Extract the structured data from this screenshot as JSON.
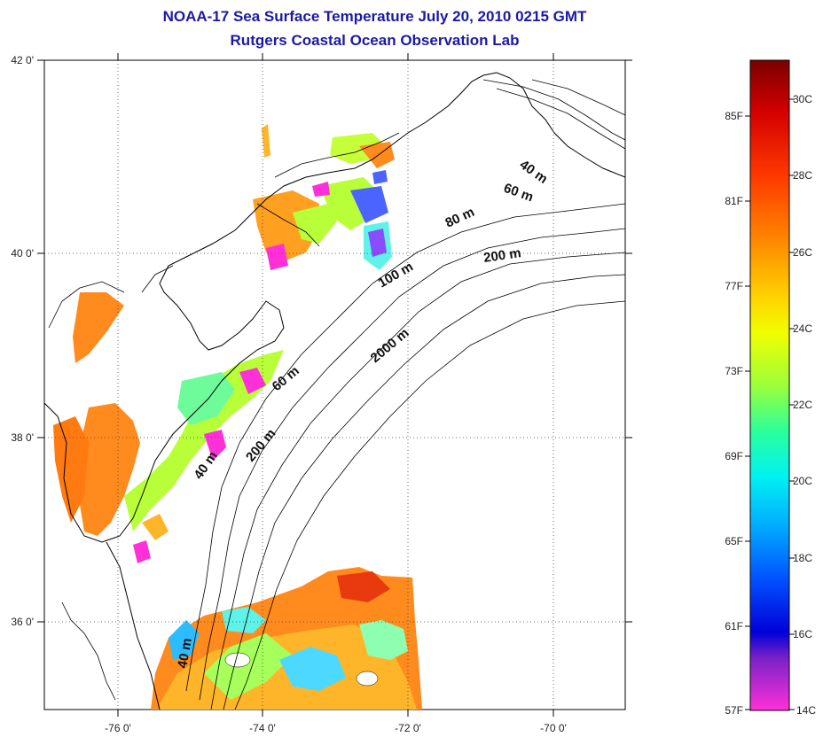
{
  "title": {
    "line1": "NOAA-17 Sea Surface Temperature July 20, 2010 0215 GMT",
    "line2": "Rutgers Coastal Ocean Observation Lab"
  },
  "map": {
    "lat_ticks": [
      "42 0'",
      "40 0'",
      "38 0'",
      "36 0'"
    ],
    "lon_ticks": [
      "-76 0'",
      "-74 0'",
      "-72 0'",
      "-70 0'"
    ],
    "depth_labels": [
      "40 m",
      "60 m",
      "80 m",
      "200 m",
      "100 m",
      "2000 m",
      "60 m",
      "200 m",
      "40 m",
      "40 m"
    ]
  },
  "colorbar": {
    "fahrenheit": [
      "85F",
      "81F",
      "77F",
      "73F",
      "69F",
      "65F",
      "61F",
      "57F"
    ],
    "celsius": [
      "30C",
      "28C",
      "26C",
      "24C",
      "22C",
      "20C",
      "18C",
      "16C",
      "14C"
    ],
    "colors": [
      "#7a0000",
      "#d40000",
      "#ff3a00",
      "#ff8a00",
      "#ffcf00",
      "#f0ff00",
      "#9cff3a",
      "#2cff9a",
      "#00f2f2",
      "#00a8ff",
      "#0050ff",
      "#0000d8",
      "#7a22c8",
      "#ff30d8"
    ]
  }
}
